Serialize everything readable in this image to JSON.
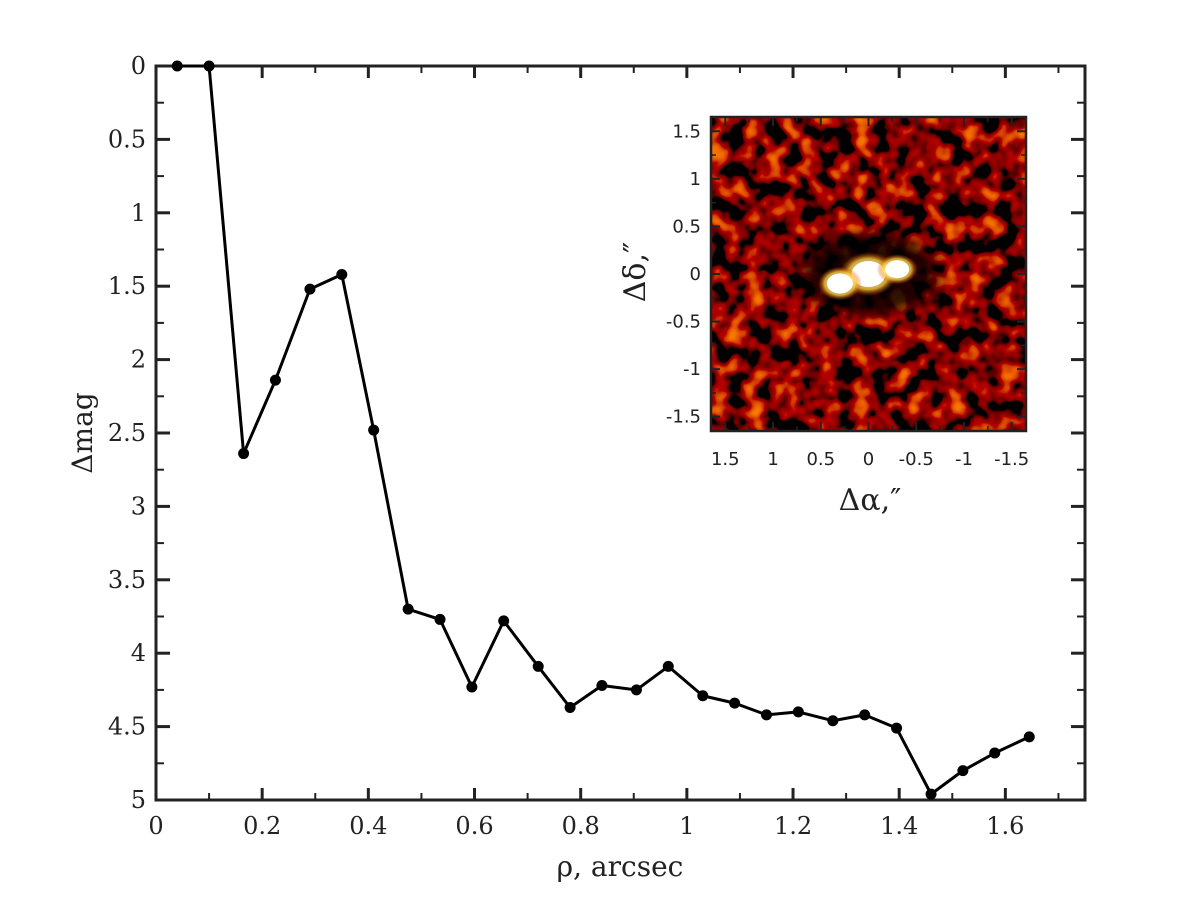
{
  "chart_data": [
    {
      "type": "line",
      "title": "",
      "xlabel": "ρ, arcsec",
      "ylabel": "Δmag",
      "xlim": [
        0,
        1.75
      ],
      "ylim": [
        0,
        5
      ],
      "y_inverted": true,
      "grid": false,
      "x_ticks": [
        "0",
        "0.2",
        "0.4",
        "0.6",
        "0.8",
        "1",
        "1.2",
        "1.4",
        "1.6"
      ],
      "y_ticks": [
        "0",
        "0.5",
        "1",
        "1.5",
        "2",
        "2.5",
        "3",
        "3.5",
        "4",
        "4.5",
        "5"
      ],
      "series": [
        {
          "color": "#000000",
          "marker": "circle",
          "x": [
            0.04,
            0.1,
            0.165,
            0.225,
            0.29,
            0.35,
            0.41,
            0.475,
            0.535,
            0.595,
            0.655,
            0.72,
            0.78,
            0.84,
            0.905,
            0.965,
            1.03,
            1.09,
            1.15,
            1.21,
            1.275,
            1.335,
            1.395,
            1.46,
            1.52,
            1.58,
            1.645
          ],
          "y": [
            0.0,
            0.0,
            2.64,
            2.14,
            1.52,
            1.42,
            2.48,
            3.7,
            3.77,
            4.23,
            3.78,
            4.09,
            4.37,
            4.22,
            4.25,
            4.09,
            4.29,
            4.34,
            4.42,
            4.4,
            4.46,
            4.42,
            4.51,
            4.96,
            4.8,
            4.68,
            4.57
          ]
        }
      ]
    },
    {
      "type": "heatmap",
      "title": "",
      "xlabel": "Δα,″",
      "ylabel": "Δδ,″",
      "xlim": [
        1.65,
        -1.65
      ],
      "ylim": [
        -1.65,
        1.65
      ],
      "x_ticks": [
        "1.5",
        "1",
        "0.5",
        "0",
        "-0.5",
        "-1",
        "-1.5"
      ],
      "y_ticks": [
        "1.5",
        "1",
        "0.5",
        "0",
        "-0.5",
        "-1",
        "-1.5"
      ],
      "colormap": "black-red-yellow-white",
      "bright_sources": [
        {
          "x": 0.0,
          "y": 0.0
        },
        {
          "x": 0.3,
          "y": -0.1
        },
        {
          "x": -0.3,
          "y": 0.05
        }
      ]
    }
  ]
}
